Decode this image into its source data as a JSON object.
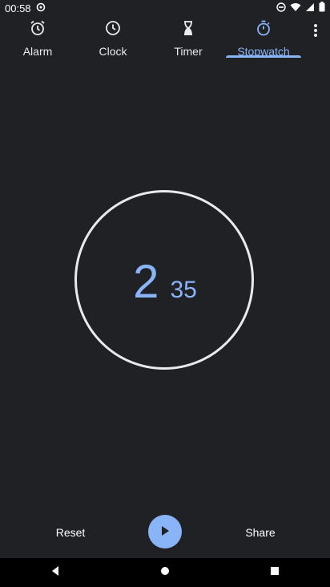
{
  "status_bar": {
    "time": "00:58",
    "icons": [
      "data-saver-icon",
      "do-not-disturb-icon",
      "wifi-icon",
      "signal-icon",
      "battery-icon"
    ]
  },
  "tabs": [
    {
      "label": "Alarm",
      "icon": "alarm-icon",
      "active": false
    },
    {
      "label": "Clock",
      "icon": "clock-icon",
      "active": false
    },
    {
      "label": "Timer",
      "icon": "hourglass-icon",
      "active": false
    },
    {
      "label": "Stopwatch",
      "icon": "stopwatch-icon",
      "active": true
    }
  ],
  "stopwatch": {
    "minutes": "2",
    "seconds": "35"
  },
  "controls": {
    "reset_label": "Reset",
    "share_label": "Share",
    "play_icon": "play-icon"
  },
  "colors": {
    "background": "#202124",
    "accent": "#8ab4f8",
    "text": "#e8eaed"
  }
}
